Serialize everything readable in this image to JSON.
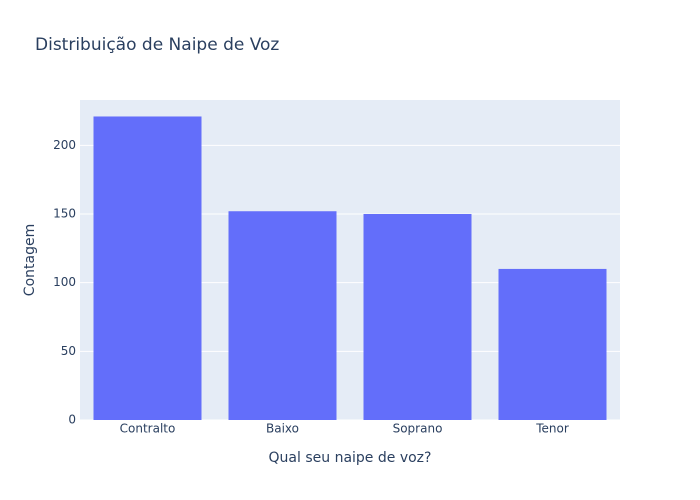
{
  "chart_data": {
    "type": "bar",
    "title": "Distribuição de Naipe de Voz",
    "x_label": "Qual seu naipe de voz?",
    "y_label": "Contagem",
    "categories": [
      "Contralto",
      "Baixo",
      "Soprano",
      "Tenor"
    ],
    "values": [
      221,
      152,
      150,
      110
    ],
    "color": "#636efa",
    "ylim": [
      0,
      233
    ],
    "yticks": [
      0,
      50,
      100,
      150,
      200
    ],
    "grid": true
  }
}
